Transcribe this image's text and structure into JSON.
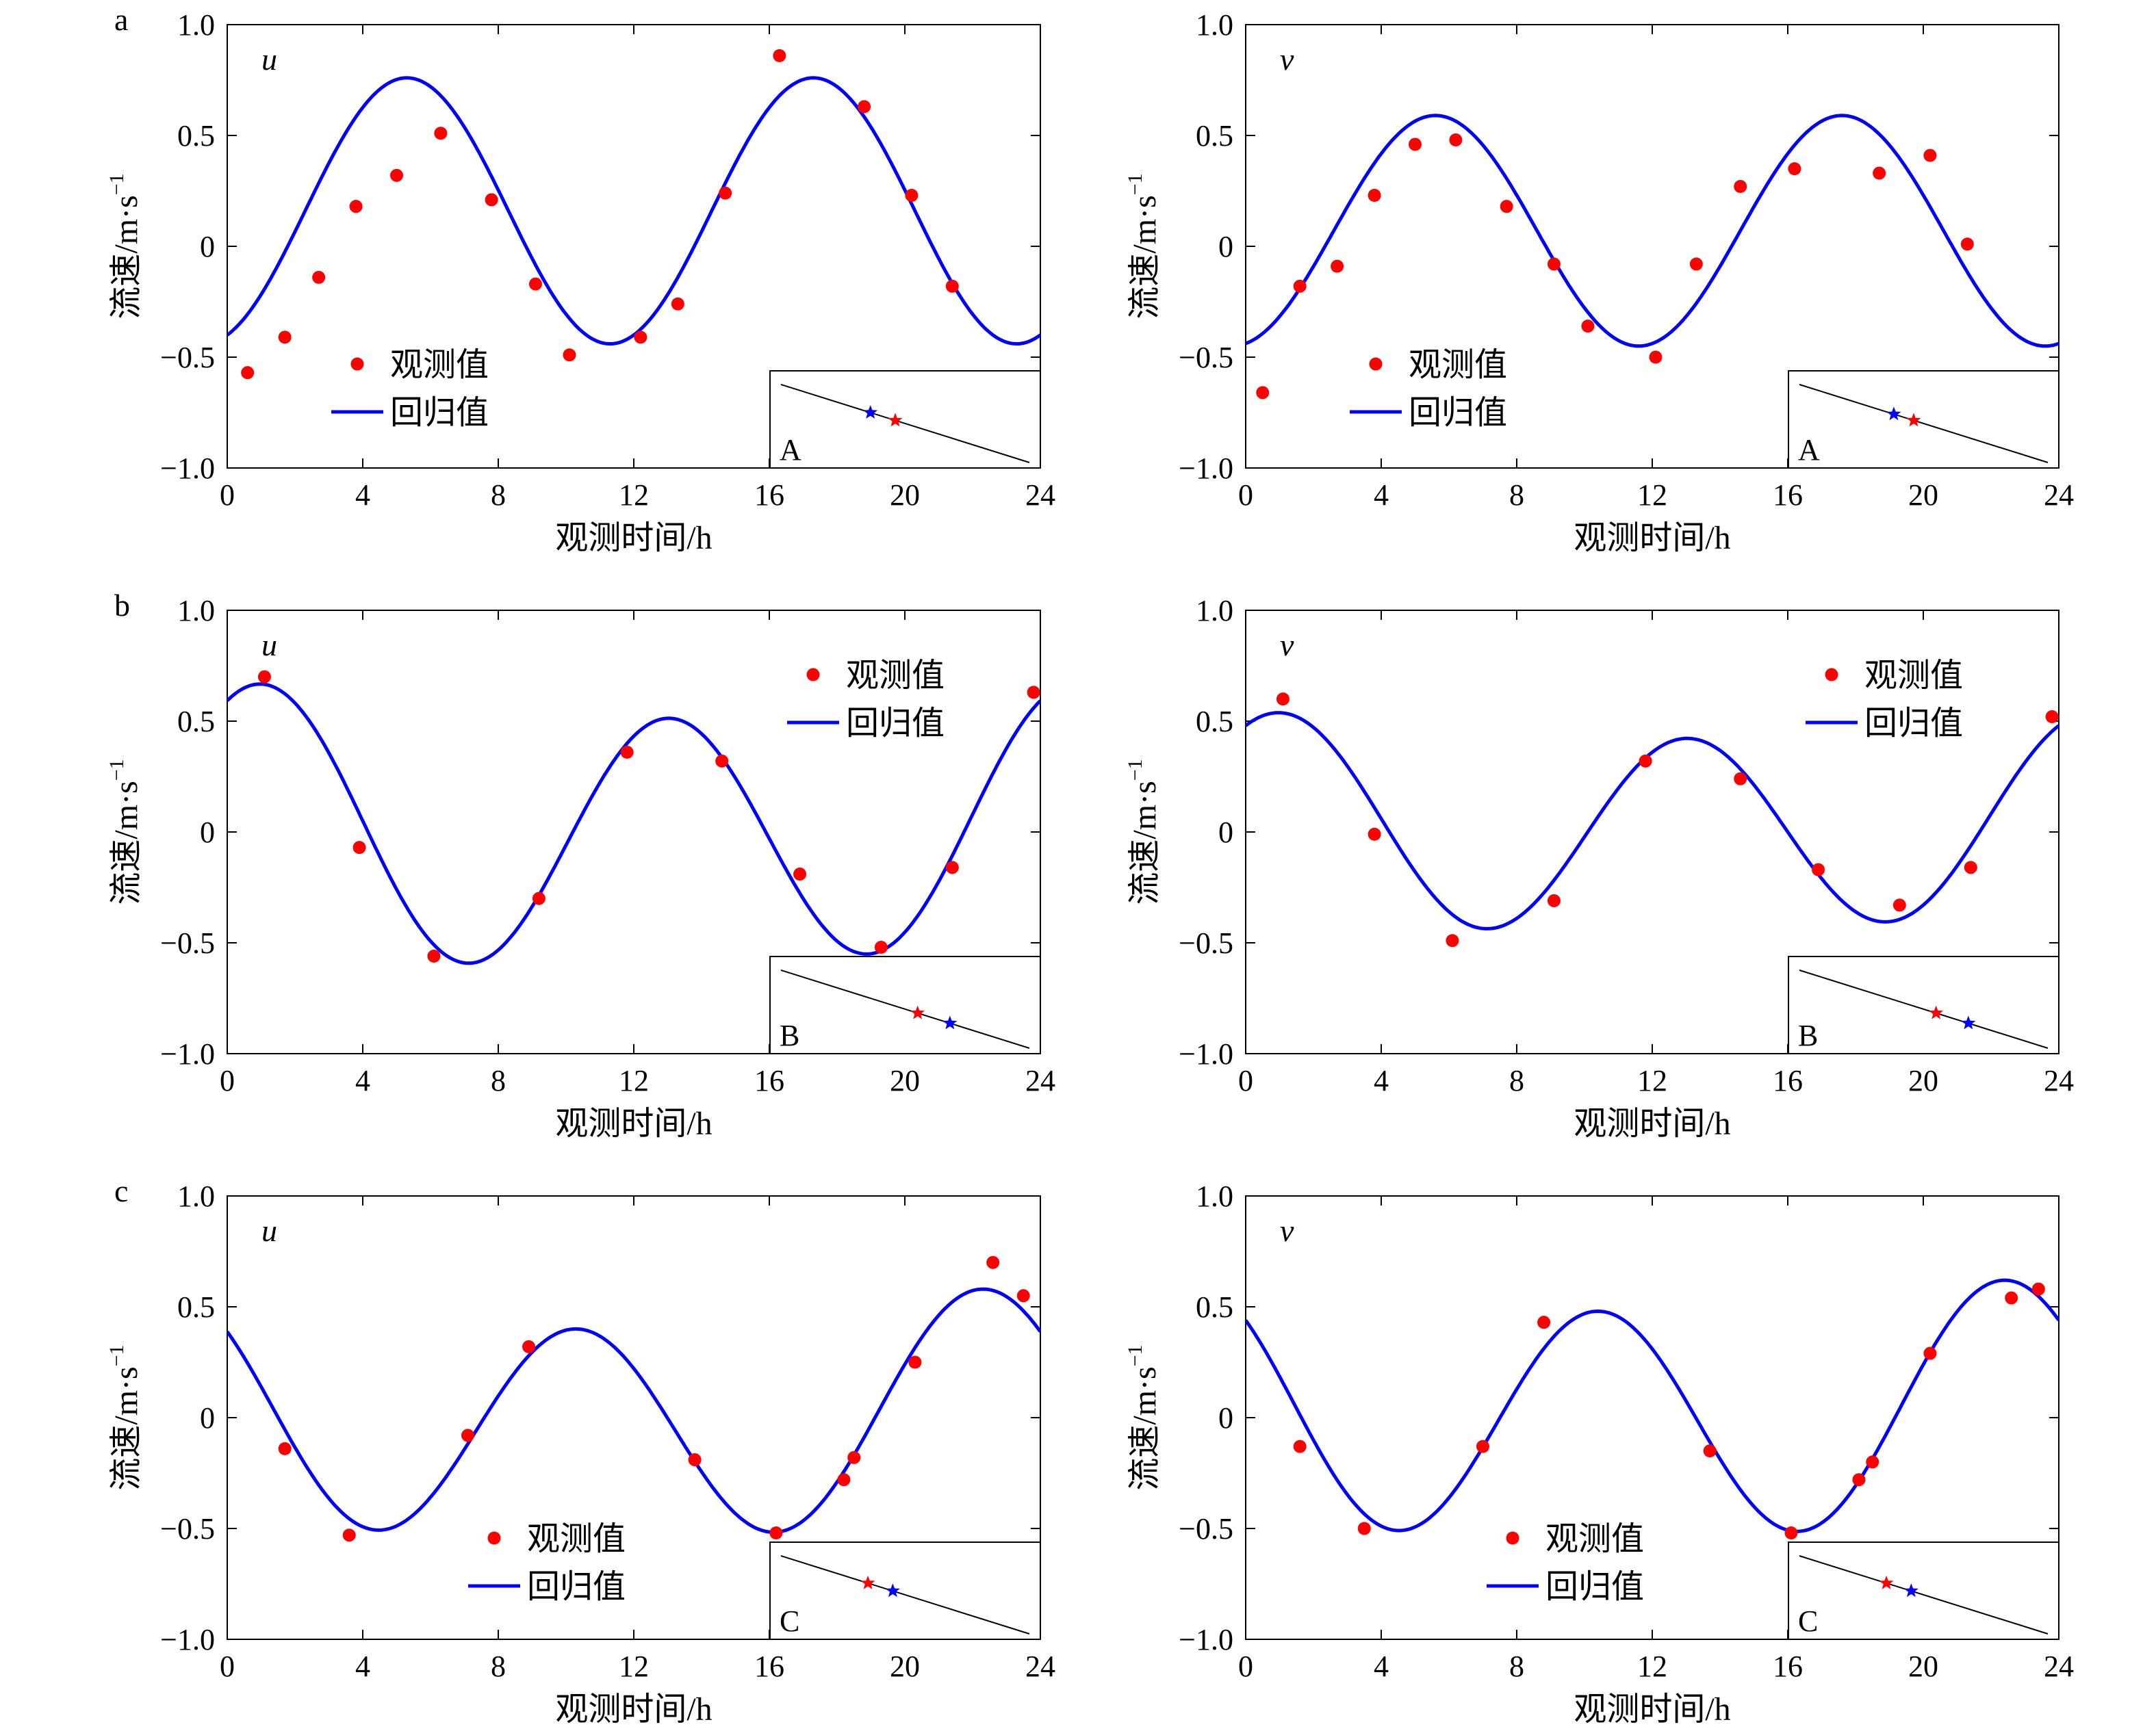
{
  "figure": {
    "legend_observed": "观测值",
    "legend_fitted": "回归值",
    "ylabel": "流速/m·s",
    "ylabel_sup": "−1",
    "xlabel": "观测时间/h",
    "x_ticks": [
      "0",
      "4",
      "8",
      "12",
      "16",
      "20",
      "24"
    ],
    "y_ticks": [
      "1.0",
      "0.5",
      "0",
      "−0.5",
      "−1.0"
    ],
    "colors": {
      "observed": "#ff0000",
      "fitted": "#0000ff",
      "axis": "#000000"
    }
  },
  "chart_data": [
    {
      "type": "line",
      "row_label": "a",
      "component": "u",
      "inset_label": "A",
      "legend_pos": "lower-left",
      "xlim": [
        0,
        24
      ],
      "ylim": [
        -1,
        1
      ],
      "fit": {
        "mean": 0.16,
        "a1": 0.6,
        "p1": 17.3,
        "a2": 0.0,
        "p2": 6
      },
      "observed": [
        [
          0.6,
          -0.57
        ],
        [
          1.7,
          -0.41
        ],
        [
          2.7,
          -0.14
        ],
        [
          3.8,
          0.18
        ],
        [
          5.0,
          0.32
        ],
        [
          6.3,
          0.51
        ],
        [
          7.8,
          0.21
        ],
        [
          9.1,
          -0.17
        ],
        [
          10.1,
          -0.49
        ],
        [
          12.2,
          -0.41
        ],
        [
          13.3,
          -0.26
        ],
        [
          14.7,
          0.24
        ],
        [
          16.3,
          0.86
        ],
        [
          18.8,
          0.63
        ],
        [
          20.2,
          0.23
        ],
        [
          21.4,
          -0.18
        ]
      ],
      "inset_markers": [
        {
          "color": "#0000ff",
          "t": 0.36
        },
        {
          "color": "#ff0000",
          "t": 0.46
        }
      ]
    },
    {
      "type": "line",
      "row_label": "",
      "component": "v",
      "inset_label": "A",
      "legend_pos": "lower-left",
      "xlim": [
        0,
        24
      ],
      "ylim": [
        -1,
        1
      ],
      "fit": {
        "mean": 0.07,
        "a1": 0.52,
        "p1": 17.6,
        "a2": 0.0,
        "p2": 6
      },
      "observed": [
        [
          0.5,
          -0.66
        ],
        [
          1.6,
          -0.18
        ],
        [
          2.7,
          -0.09
        ],
        [
          3.8,
          0.23
        ],
        [
          5.0,
          0.46
        ],
        [
          6.2,
          0.48
        ],
        [
          7.7,
          0.18
        ],
        [
          9.1,
          -0.08
        ],
        [
          10.1,
          -0.36
        ],
        [
          12.1,
          -0.5
        ],
        [
          13.3,
          -0.08
        ],
        [
          14.6,
          0.27
        ],
        [
          16.2,
          0.35
        ],
        [
          18.7,
          0.33
        ],
        [
          20.2,
          0.41
        ],
        [
          21.3,
          0.01
        ]
      ],
      "inset_markers": [
        {
          "color": "#0000ff",
          "t": 0.38
        },
        {
          "color": "#ff0000",
          "t": 0.46
        }
      ]
    },
    {
      "type": "line",
      "row_label": "b",
      "component": "u",
      "inset_label": "B",
      "legend_pos": "upper-right",
      "xlim": [
        0,
        24
      ],
      "ylim": [
        -1,
        1
      ],
      "fit": {
        "mean": 0.01,
        "a1": 0.58,
        "p1": 13.0,
        "a2": 0.08,
        "p2": 0
      },
      "observed": [
        [
          1.1,
          0.7
        ],
        [
          3.9,
          -0.07
        ],
        [
          6.1,
          -0.56
        ],
        [
          9.2,
          -0.3
        ],
        [
          11.8,
          0.36
        ],
        [
          14.6,
          0.32
        ],
        [
          16.9,
          -0.19
        ],
        [
          19.3,
          -0.52
        ],
        [
          21.4,
          -0.16
        ],
        [
          23.8,
          0.63
        ]
      ],
      "inset_markers": [
        {
          "color": "#ff0000",
          "t": 0.55
        },
        {
          "color": "#0000ff",
          "t": 0.68
        }
      ]
    },
    {
      "type": "line",
      "row_label": "",
      "component": "v",
      "inset_label": "B",
      "legend_pos": "upper-right",
      "xlim": [
        0,
        24
      ],
      "ylim": [
        -1,
        1
      ],
      "fit": {
        "mean": 0.03,
        "a1": 0.45,
        "p1": 13.0,
        "a2": 0.06,
        "p2": 0
      },
      "observed": [
        [
          1.1,
          0.6
        ],
        [
          3.8,
          -0.01
        ],
        [
          6.1,
          -0.49
        ],
        [
          9.1,
          -0.31
        ],
        [
          11.8,
          0.32
        ],
        [
          14.6,
          0.24
        ],
        [
          16.9,
          -0.17
        ],
        [
          19.3,
          -0.33
        ],
        [
          21.4,
          -0.16
        ],
        [
          23.8,
          0.52
        ]
      ],
      "inset_markers": [
        {
          "color": "#ff0000",
          "t": 0.55
        },
        {
          "color": "#0000ff",
          "t": 0.68
        }
      ]
    },
    {
      "type": "line",
      "row_label": "c",
      "component": "u",
      "inset_label": "C",
      "legend_pos": "lower-left",
      "xlim": [
        0,
        24
      ],
      "ylim": [
        -1,
        1
      ],
      "fit": {
        "mean": -0.01,
        "a1": 0.5,
        "p1": 10.3,
        "a2": 0.09,
        "p2": 22.5
      },
      "observed": [
        [
          1.7,
          -0.14
        ],
        [
          3.6,
          -0.53
        ],
        [
          7.1,
          -0.08
        ],
        [
          8.9,
          0.32
        ],
        [
          13.8,
          -0.19
        ],
        [
          16.2,
          -0.52
        ],
        [
          18.2,
          -0.28
        ],
        [
          18.5,
          -0.18
        ],
        [
          20.3,
          0.25
        ],
        [
          22.6,
          0.7
        ],
        [
          23.5,
          0.55
        ]
      ],
      "inset_markers": [
        {
          "color": "#ff0000",
          "t": 0.35
        },
        {
          "color": "#0000ff",
          "t": 0.45
        }
      ]
    },
    {
      "type": "line",
      "row_label": "",
      "component": "v",
      "inset_label": "C",
      "legend_pos": "lower-left",
      "xlim": [
        0,
        24
      ],
      "ylim": [
        -1,
        1
      ],
      "fit": {
        "mean": 0.02,
        "a1": 0.53,
        "p1": 10.4,
        "a2": 0.07,
        "p2": 22.5
      },
      "observed": [
        [
          1.6,
          -0.13
        ],
        [
          3.5,
          -0.5
        ],
        [
          7.0,
          -0.13
        ],
        [
          8.8,
          0.43
        ],
        [
          13.7,
          -0.15
        ],
        [
          16.1,
          -0.52
        ],
        [
          18.1,
          -0.28
        ],
        [
          18.5,
          -0.2
        ],
        [
          20.2,
          0.29
        ],
        [
          22.6,
          0.54
        ],
        [
          23.4,
          0.58
        ]
      ],
      "inset_markers": [
        {
          "color": "#ff0000",
          "t": 0.35
        },
        {
          "color": "#0000ff",
          "t": 0.45
        }
      ]
    }
  ]
}
